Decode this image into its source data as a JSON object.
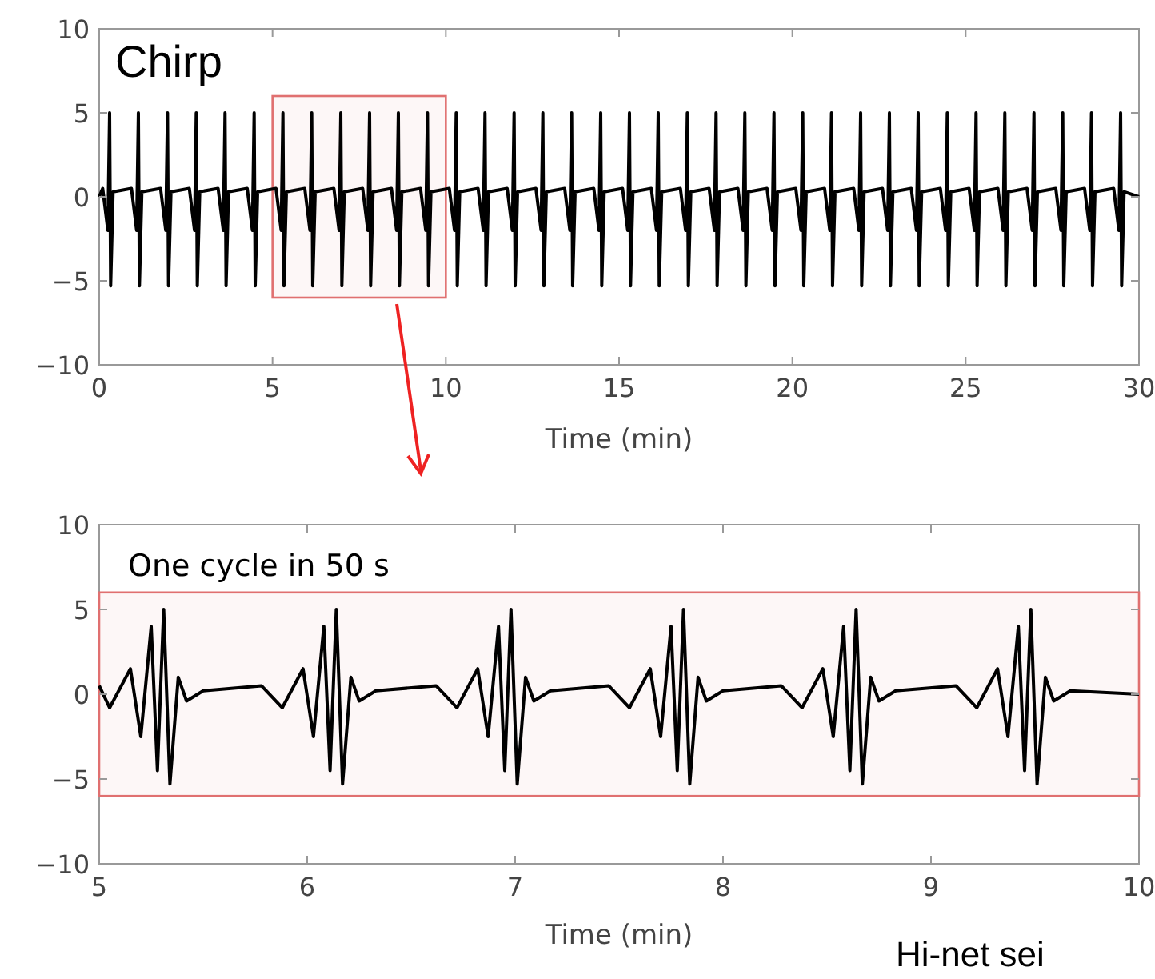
{
  "chart_data": [
    {
      "type": "line",
      "title": "Chirp",
      "xlabel": "Time (min)",
      "xlim": [
        0,
        30
      ],
      "ylim": [
        -10,
        10
      ],
      "xticks": [
        0,
        5,
        10,
        15,
        20,
        25,
        30
      ],
      "yticks": [
        -10,
        -5,
        0,
        5,
        10
      ],
      "bands": [
        {
          "axis": "x",
          "from": 5,
          "to": 10,
          "color": "#e07070"
        }
      ],
      "series": [
        {
          "color": "#000000",
          "x": [
            0,
            0.1,
            0.25,
            0.3,
            0.33,
            0.4,
            0.93,
            1.08,
            1.13,
            1.16,
            1.23,
            1.77,
            1.92,
            1.97,
            2.0,
            2.07,
            2.6,
            2.75,
            2.8,
            2.83,
            2.9,
            3.43,
            3.58,
            3.63,
            3.66,
            3.73,
            4.27,
            4.42,
            4.47,
            4.5,
            4.57,
            5.1,
            5.25,
            5.3,
            5.33,
            5.4,
            5.93,
            6.08,
            6.13,
            6.16,
            6.23,
            6.77,
            6.92,
            6.97,
            7.0,
            7.07,
            7.6,
            7.75,
            7.8,
            7.83,
            7.9,
            8.43,
            8.58,
            8.63,
            8.66,
            8.73,
            9.27,
            9.42,
            9.47,
            9.5,
            9.57,
            10.1,
            10.25,
            10.3,
            10.33,
            10.4,
            10.93,
            11.08,
            11.13,
            11.16,
            11.23,
            11.77,
            11.92,
            11.97,
            12.0,
            12.07,
            12.6,
            12.75,
            12.8,
            12.83,
            12.9,
            13.43,
            13.58,
            13.63,
            13.66,
            13.73,
            14.27,
            14.42,
            14.47,
            14.5,
            14.57,
            15.1,
            15.25,
            15.3,
            15.33,
            15.4,
            15.93,
            16.08,
            16.13,
            16.16,
            16.23,
            16.77,
            16.92,
            16.97,
            17.0,
            17.07,
            17.6,
            17.75,
            17.8,
            17.83,
            17.9,
            18.43,
            18.58,
            18.63,
            18.66,
            18.73,
            19.27,
            19.42,
            19.47,
            19.5,
            19.57,
            20.1,
            20.25,
            20.3,
            20.33,
            20.4,
            20.93,
            21.08,
            21.13,
            21.16,
            21.23,
            21.77,
            21.92,
            21.97,
            22.0,
            22.07,
            22.6,
            22.75,
            22.8,
            22.83,
            22.9,
            23.43,
            23.58,
            23.63,
            23.66,
            23.73,
            24.27,
            24.42,
            24.47,
            24.5,
            24.57,
            25.1,
            25.25,
            25.3,
            25.33,
            25.4,
            25.93,
            26.08,
            26.13,
            26.16,
            26.23,
            26.77,
            26.92,
            26.97,
            27.0,
            27.07,
            27.6,
            27.75,
            27.8,
            27.83,
            27.9,
            28.43,
            28.58,
            28.63,
            28.66,
            28.73,
            29.27,
            29.42,
            29.47,
            29.5,
            29.57,
            30
          ],
          "values": [
            0,
            0.5,
            -2,
            5,
            -5.3,
            0.3,
            0.5,
            -2,
            5,
            -5.3,
            0.3,
            0.5,
            -2,
            5,
            -5.3,
            0.3,
            0.5,
            -2,
            5,
            -5.3,
            0.3,
            0.5,
            -2,
            5,
            -5.3,
            0.3,
            0.5,
            -2,
            5,
            -5.3,
            0.3,
            0.5,
            -2,
            5,
            -5.3,
            0.3,
            0.5,
            -2,
            5,
            -5.3,
            0.3,
            0.5,
            -2,
            5,
            -5.3,
            0.3,
            0.5,
            -2,
            5,
            -5.3,
            0.3,
            0.5,
            -2,
            5,
            -5.3,
            0.3,
            0.5,
            -2,
            5,
            -5.3,
            0.3,
            0.5,
            -2,
            5,
            -5.3,
            0.3,
            0.5,
            -2,
            5,
            -5.3,
            0.3,
            0.5,
            -2,
            5,
            -5.3,
            0.3,
            0.5,
            -2,
            5,
            -5.3,
            0.3,
            0.5,
            -2,
            5,
            -5.3,
            0.3,
            0.5,
            -2,
            5,
            -5.3,
            0.3,
            0.5,
            -2,
            5,
            -5.3,
            0.3,
            0.5,
            -2,
            5,
            -5.3,
            0.3,
            0.5,
            -2,
            5,
            -5.3,
            0.3,
            0.5,
            -2,
            5,
            -5.3,
            0.3,
            0.5,
            -2,
            5,
            -5.3,
            0.3,
            0.5,
            -2,
            5,
            -5.3,
            0.3,
            0.5,
            -2,
            5,
            -5.3,
            0.3,
            0.5,
            -2,
            5,
            -5.3,
            0.3,
            0.5,
            -2,
            5,
            -5.3,
            0.3,
            0.5,
            -2,
            5,
            -5.3,
            0.3,
            0.5,
            -2,
            5,
            -5.3,
            0.3,
            0.5,
            -2,
            5,
            -5.3,
            0.3,
            0.5,
            -2,
            5,
            -5.3,
            0.3,
            0.5,
            -2,
            5,
            -5.3,
            0.3,
            0.5,
            -2,
            5,
            -5.3,
            0.3,
            0.5,
            -2,
            5,
            -5.3,
            0.3,
            0.5,
            -2,
            5,
            -5.3,
            0.3,
            0.5,
            -2,
            5,
            -5.3,
            0.3,
            0
          ]
        }
      ]
    },
    {
      "type": "line",
      "title": "One cycle in 50 s",
      "xlabel": "Time (min)",
      "xlim": [
        5,
        10
      ],
      "ylim": [
        -10,
        10
      ],
      "xticks": [
        5,
        6,
        7,
        8,
        9,
        10
      ],
      "yticks": [
        -10,
        -5,
        0,
        5,
        10
      ],
      "bands": [
        {
          "axis": "y",
          "from": -6,
          "to": 6,
          "color": "#e07070"
        }
      ],
      "annotations": [
        "Hi-net sei"
      ],
      "series": [
        {
          "color": "#000000",
          "x": [
            5.0,
            5.05,
            5.15,
            5.2,
            5.25,
            5.28,
            5.31,
            5.34,
            5.38,
            5.42,
            5.5,
            5.78,
            5.88,
            5.98,
            6.03,
            6.08,
            6.11,
            6.14,
            6.17,
            6.21,
            6.25,
            6.33,
            6.62,
            6.72,
            6.82,
            6.87,
            6.92,
            6.95,
            6.98,
            7.01,
            7.05,
            7.09,
            7.17,
            7.45,
            7.55,
            7.65,
            7.7,
            7.75,
            7.78,
            7.81,
            7.84,
            7.88,
            7.92,
            8.0,
            8.28,
            8.38,
            8.48,
            8.53,
            8.58,
            8.61,
            8.64,
            8.67,
            8.71,
            8.75,
            8.83,
            9.12,
            9.22,
            9.32,
            9.37,
            9.42,
            9.45,
            9.48,
            9.51,
            9.55,
            9.59,
            9.67,
            10.0
          ],
          "values": [
            0.5,
            -0.8,
            1.5,
            -2.5,
            4,
            -4.5,
            5,
            -5.3,
            1,
            -0.4,
            0.2,
            0.5,
            -0.8,
            1.5,
            -2.5,
            4,
            -4.5,
            5,
            -5.3,
            1,
            -0.4,
            0.2,
            0.5,
            -0.8,
            1.5,
            -2.5,
            4,
            -4.5,
            5,
            -5.3,
            1,
            -0.4,
            0.2,
            0.5,
            -0.8,
            1.5,
            -2.5,
            4,
            -4.5,
            5,
            -5.3,
            1,
            -0.4,
            0.2,
            0.5,
            -0.8,
            1.5,
            -2.5,
            4,
            -4.5,
            5,
            -5.3,
            1,
            -0.4,
            0.2,
            0.5,
            -0.8,
            1.5,
            -2.5,
            4,
            -4.5,
            5,
            -5.3,
            1,
            -0.4,
            0.2,
            0
          ]
        }
      ]
    }
  ]
}
